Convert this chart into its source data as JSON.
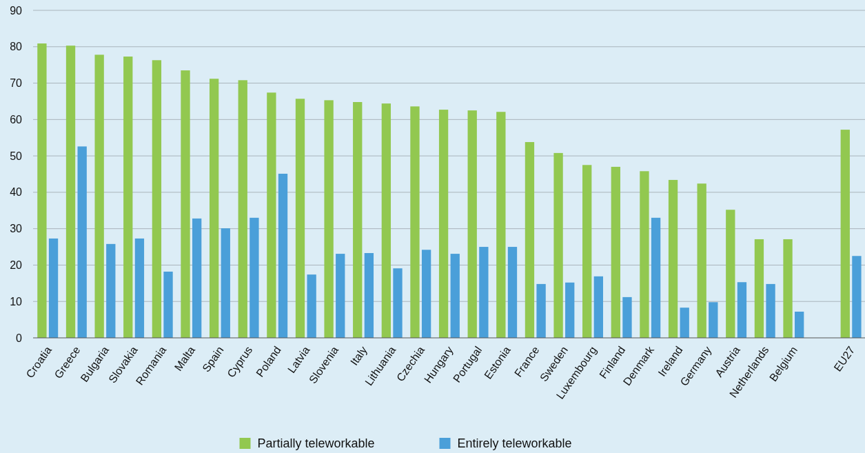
{
  "chart_data": {
    "type": "bar",
    "categories": [
      "Croatia",
      "Greece",
      "Bulgaria",
      "Slovakia",
      "Romania",
      "Malta",
      "Spain",
      "Cyprus",
      "Poland",
      "Latvia",
      "Slovenia",
      "Italy",
      "Lithuania",
      "Czechia",
      "Hungary",
      "Portugal",
      "Estonia",
      "France",
      "Sweden",
      "Luxembourg",
      "Finland",
      "Denmark",
      "Ireland",
      "Germany",
      "Austria",
      "Netherlands",
      "Belgium",
      null,
      "EU27"
    ],
    "series": [
      {
        "name": "Partially teleworkable",
        "color": "#92c850",
        "values": [
          80.9,
          80.3,
          77.8,
          77.3,
          76.3,
          73.5,
          71.2,
          70.8,
          67.4,
          65.7,
          65.3,
          64.8,
          64.4,
          63.6,
          62.7,
          62.5,
          62.1,
          53.8,
          50.8,
          47.5,
          47.0,
          45.8,
          43.4,
          42.4,
          35.2,
          27.1,
          27.1,
          null,
          57.2
        ]
      },
      {
        "name": "Entirely teleworkable",
        "color": "#4a9fd9",
        "values": [
          27.3,
          52.6,
          25.8,
          27.3,
          18.2,
          32.8,
          30.1,
          33.0,
          45.1,
          17.4,
          23.1,
          23.3,
          19.1,
          24.2,
          23.1,
          25.0,
          25.0,
          14.8,
          15.2,
          16.9,
          11.2,
          33.0,
          8.3,
          9.8,
          15.3,
          14.8,
          7.2,
          null,
          22.5
        ]
      }
    ],
    "ylim": [
      0,
      90
    ],
    "yticks": [
      0,
      10,
      20,
      30,
      40,
      50,
      60,
      70,
      80,
      90
    ],
    "grid": "y",
    "legend": "bottom"
  }
}
